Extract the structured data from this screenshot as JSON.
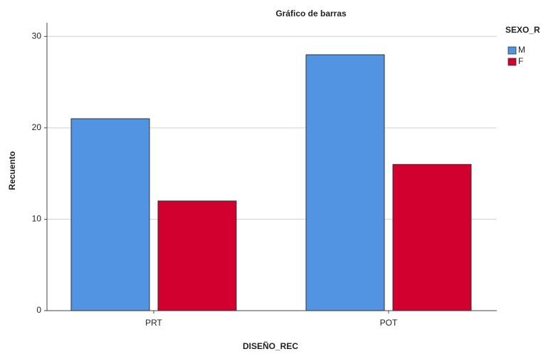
{
  "chart_data": {
    "type": "bar",
    "title": "Gráfico de barras",
    "x_label": "DISEÑO_REC",
    "y_label": "Recuento",
    "categories": [
      "PRT",
      "POT"
    ],
    "series": [
      {
        "name": "M",
        "color": "#5294e2",
        "values": [
          21,
          28
        ]
      },
      {
        "name": "F",
        "color": "#d2002f",
        "values": [
          12,
          16
        ]
      }
    ],
    "legend_title": "SEXO_R",
    "ylim": [
      0,
      31.5
    ],
    "yticks": [
      0,
      10,
      20,
      30
    ],
    "grid": true,
    "legend": "right"
  }
}
